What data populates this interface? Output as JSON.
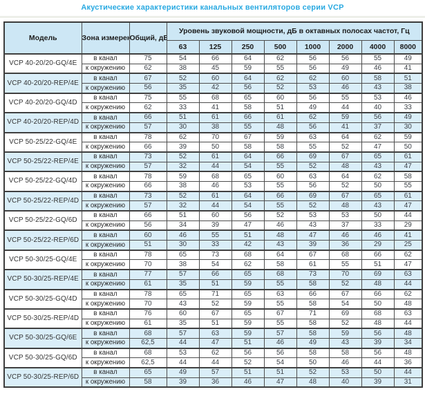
{
  "title": "Акустические характеристики канальных вентиляторов  серии VCP",
  "colors": {
    "accent_blue": "#29a9e1",
    "header_bg": "#cde7f5",
    "stripe_bg": "#daeef8",
    "border": "#4d4d4d",
    "text": "#3a3f45"
  },
  "table": {
    "headers": {
      "model": "Модель",
      "zone": "Зона измерения",
      "total": "Общий, дБА",
      "span": "Уровень звуковой мощности, дБ в октавных полосах частот, Гц",
      "frequencies": [
        "63",
        "125",
        "250",
        "500",
        "1000",
        "2000",
        "4000",
        "8000"
      ]
    },
    "zone_labels": [
      "в канал",
      "к окружению"
    ],
    "rows": [
      {
        "model": "VCP 40-20/20-GQ/4E",
        "shaded": false,
        "duct": {
          "total": "75",
          "levels": [
            54,
            66,
            64,
            62,
            56,
            56,
            55,
            49
          ]
        },
        "ambient": {
          "total": "62",
          "levels": [
            38,
            45,
            59,
            55,
            56,
            49,
            46,
            41
          ]
        }
      },
      {
        "model": "VCP 40-20/20-REP/4E",
        "shaded": true,
        "duct": {
          "total": "67",
          "levels": [
            52,
            60,
            64,
            62,
            62,
            60,
            58,
            51
          ]
        },
        "ambient": {
          "total": "56",
          "levels": [
            35,
            42,
            56,
            52,
            53,
            46,
            43,
            38
          ]
        }
      },
      {
        "model": "VCP 40-20/20-GQ/4D",
        "shaded": false,
        "duct": {
          "total": "75",
          "levels": [
            55,
            68,
            65,
            60,
            56,
            55,
            53,
            46
          ]
        },
        "ambient": {
          "total": "62",
          "levels": [
            33,
            41,
            58,
            51,
            49,
            44,
            40,
            33
          ]
        }
      },
      {
        "model": "VCP 40-20/20-REP/4D",
        "shaded": true,
        "duct": {
          "total": "66",
          "levels": [
            51,
            61,
            66,
            61,
            62,
            59,
            56,
            49
          ]
        },
        "ambient": {
          "total": "57",
          "levels": [
            30,
            38,
            55,
            48,
            56,
            41,
            37,
            30
          ]
        }
      },
      {
        "model": "VCP 50-25/22-GQ/4E",
        "shaded": false,
        "duct": {
          "total": "78",
          "levels": [
            62,
            70,
            67,
            59,
            63,
            64,
            62,
            59
          ]
        },
        "ambient": {
          "total": "66",
          "levels": [
            39,
            50,
            58,
            58,
            55,
            52,
            47,
            50
          ]
        }
      },
      {
        "model": "VCP 50-25/22-REP/4E",
        "shaded": true,
        "duct": {
          "total": "73",
          "levels": [
            52,
            61,
            64,
            66,
            69,
            67,
            65,
            61
          ]
        },
        "ambient": {
          "total": "57",
          "levels": [
            32,
            44,
            54,
            55,
            52,
            48,
            43,
            47
          ]
        }
      },
      {
        "model": "VCP 50-25/22-GQ/4D",
        "shaded": false,
        "duct": {
          "total": "78",
          "levels": [
            59,
            68,
            65,
            60,
            63,
            64,
            62,
            58
          ]
        },
        "ambient": {
          "total": "66",
          "levels": [
            38,
            46,
            53,
            55,
            56,
            52,
            50,
            55
          ]
        }
      },
      {
        "model": "VCP 50-25/22-REP/4D",
        "shaded": true,
        "duct": {
          "total": "73",
          "levels": [
            52,
            61,
            64,
            66,
            69,
            67,
            65,
            61
          ]
        },
        "ambient": {
          "total": "57",
          "levels": [
            32,
            44,
            54,
            55,
            52,
            48,
            43,
            47
          ]
        }
      },
      {
        "model": "VCP 50-25/22-GQ/6D",
        "shaded": false,
        "duct": {
          "total": "66",
          "levels": [
            51,
            60,
            56,
            52,
            53,
            53,
            50,
            44
          ]
        },
        "ambient": {
          "total": "56",
          "levels": [
            34,
            39,
            47,
            46,
            43,
            37,
            33,
            29
          ]
        }
      },
      {
        "model": "VCP 50-25/22-REP/6D",
        "shaded": true,
        "duct": {
          "total": "60",
          "levels": [
            46,
            55,
            51,
            48,
            47,
            46,
            46,
            41
          ]
        },
        "ambient": {
          "total": "51",
          "levels": [
            30,
            33,
            42,
            43,
            39,
            36,
            29,
            25
          ]
        }
      },
      {
        "model": "VCP 50-30/25-GQ/4E",
        "shaded": false,
        "duct": {
          "total": "78",
          "levels": [
            65,
            73,
            68,
            64,
            67,
            68,
            66,
            62
          ]
        },
        "ambient": {
          "total": "70",
          "levels": [
            38,
            54,
            62,
            58,
            61,
            55,
            51,
            47
          ]
        }
      },
      {
        "model": "VCP 50-30/25-REP/4E",
        "shaded": true,
        "duct": {
          "total": "77",
          "levels": [
            57,
            66,
            65,
            68,
            73,
            70,
            69,
            63
          ]
        },
        "ambient": {
          "total": "61",
          "levels": [
            35,
            51,
            59,
            55,
            58,
            52,
            48,
            44
          ]
        }
      },
      {
        "model": "VCP 50-30/25-GQ/4D",
        "shaded": false,
        "duct": {
          "total": "78",
          "levels": [
            65,
            71,
            65,
            63,
            66,
            67,
            66,
            62
          ]
        },
        "ambient": {
          "total": "70",
          "levels": [
            43,
            52,
            59,
            55,
            58,
            54,
            50,
            48
          ]
        }
      },
      {
        "model": "VCP 50-30/25-REP/4D",
        "shaded": false,
        "duct": {
          "total": "76",
          "levels": [
            60,
            67,
            65,
            67,
            71,
            69,
            68,
            63
          ]
        },
        "ambient": {
          "total": "61",
          "levels": [
            35,
            51,
            59,
            55,
            58,
            52,
            48,
            44
          ]
        }
      },
      {
        "model": "VCP 50-30/25-GQ/6E",
        "shaded": true,
        "duct": {
          "total": "68",
          "levels": [
            57,
            63,
            59,
            57,
            58,
            59,
            56,
            48
          ]
        },
        "ambient": {
          "total": "62,5",
          "levels": [
            44,
            47,
            51,
            46,
            49,
            43,
            39,
            34
          ]
        }
      },
      {
        "model": "VCP 50-30/25-GQ/6D",
        "shaded": false,
        "duct": {
          "total": "68",
          "levels": [
            53,
            62,
            56,
            56,
            58,
            58,
            56,
            48
          ]
        },
        "ambient": {
          "total": "62,5",
          "levels": [
            44,
            44,
            52,
            54,
            50,
            46,
            44,
            36
          ]
        }
      },
      {
        "model": "VCP 50-30/25-REP/6D",
        "shaded": true,
        "duct": {
          "total": "65",
          "levels": [
            49,
            57,
            51,
            51,
            52,
            53,
            50,
            44
          ]
        },
        "ambient": {
          "total": "58",
          "levels": [
            39,
            36,
            46,
            47,
            48,
            40,
            39,
            31
          ]
        }
      }
    ]
  }
}
